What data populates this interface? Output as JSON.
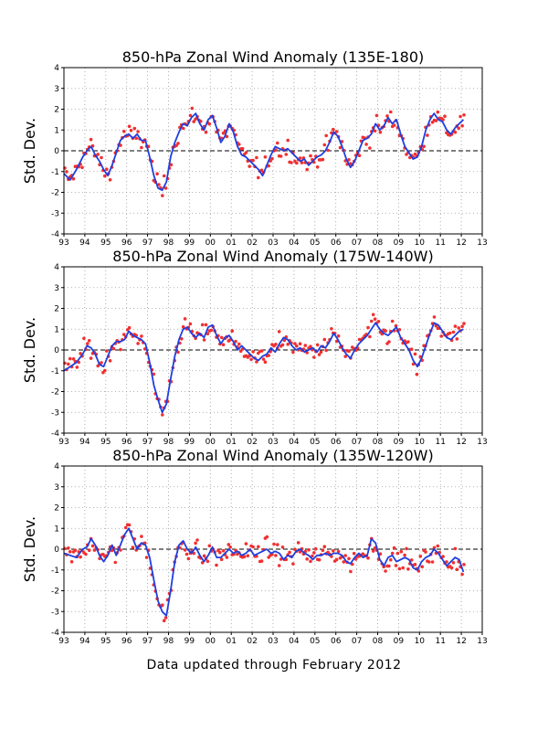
{
  "footer": "Data updated through February 2012",
  "colors": {
    "line": "#1f3fe0",
    "dots": "#f03030",
    "grid": "#9a9a9a",
    "zero": "#000000"
  },
  "chart_data": [
    {
      "type": "line",
      "title": "850-hPa Zonal Wind Anomaly (135E-180)",
      "ylabel": "Std. Dev.",
      "xlim": [
        1993,
        2013
      ],
      "ylim": [
        -4,
        4
      ],
      "x_ticks": [
        "93",
        "94",
        "95",
        "96",
        "97",
        "98",
        "99",
        "00",
        "01",
        "02",
        "03",
        "04",
        "05",
        "06",
        "07",
        "08",
        "09",
        "10",
        "11",
        "12",
        "13"
      ],
      "y_ticks": [
        "4",
        "3",
        "2",
        "1",
        "0",
        "-1",
        "-2",
        "-3",
        "-4"
      ],
      "grid": true,
      "zero_line": "dashed",
      "smooth_series_knots": [
        [
          1993.0,
          -1.1
        ],
        [
          1993.3,
          -1.4
        ],
        [
          1993.6,
          -0.9
        ],
        [
          1993.9,
          -0.3
        ],
        [
          1994.1,
          0.0
        ],
        [
          1994.3,
          0.2
        ],
        [
          1994.5,
          -0.2
        ],
        [
          1994.7,
          -0.5
        ],
        [
          1994.9,
          -0.9
        ],
        [
          1995.1,
          -1.2
        ],
        [
          1995.3,
          -0.7
        ],
        [
          1995.5,
          -0.1
        ],
        [
          1995.7,
          0.5
        ],
        [
          1995.9,
          0.7
        ],
        [
          1996.1,
          0.8
        ],
        [
          1996.3,
          0.6
        ],
        [
          1996.5,
          0.8
        ],
        [
          1996.7,
          0.5
        ],
        [
          1996.9,
          0.5
        ],
        [
          1997.1,
          -0.3
        ],
        [
          1997.3,
          -1.2
        ],
        [
          1997.5,
          -1.8
        ],
        [
          1997.7,
          -1.9
        ],
        [
          1997.9,
          -1.5
        ],
        [
          1998.1,
          -0.3
        ],
        [
          1998.3,
          0.4
        ],
        [
          1998.5,
          0.9
        ],
        [
          1998.7,
          1.3
        ],
        [
          1998.9,
          1.2
        ],
        [
          1999.1,
          1.6
        ],
        [
          1999.3,
          1.8
        ],
        [
          1999.5,
          1.3
        ],
        [
          1999.7,
          1.0
        ],
        [
          1999.9,
          1.5
        ],
        [
          2000.1,
          1.7
        ],
        [
          2000.3,
          1.1
        ],
        [
          2000.5,
          0.4
        ],
        [
          2000.7,
          0.7
        ],
        [
          2000.9,
          1.3
        ],
        [
          2001.1,
          0.9
        ],
        [
          2001.3,
          0.2
        ],
        [
          2001.5,
          -0.2
        ],
        [
          2001.7,
          -0.3
        ],
        [
          2001.9,
          -0.5
        ],
        [
          2002.1,
          -0.7
        ],
        [
          2002.3,
          -0.9
        ],
        [
          2002.5,
          -1.2
        ],
        [
          2002.7,
          -0.7
        ],
        [
          2002.9,
          -0.2
        ],
        [
          2003.1,
          0.2
        ],
        [
          2003.3,
          0.1
        ],
        [
          2003.5,
          0.0
        ],
        [
          2003.7,
          0.1
        ],
        [
          2003.9,
          -0.1
        ],
        [
          2004.1,
          -0.3
        ],
        [
          2004.3,
          -0.5
        ],
        [
          2004.5,
          -0.4
        ],
        [
          2004.7,
          -0.7
        ],
        [
          2004.9,
          -0.5
        ],
        [
          2005.1,
          -0.3
        ],
        [
          2005.3,
          -0.2
        ],
        [
          2005.5,
          0.0
        ],
        [
          2005.7,
          0.4
        ],
        [
          2005.9,
          0.9
        ],
        [
          2006.1,
          0.7
        ],
        [
          2006.3,
          0.2
        ],
        [
          2006.5,
          -0.4
        ],
        [
          2006.7,
          -0.8
        ],
        [
          2006.9,
          -0.5
        ],
        [
          2007.1,
          0.0
        ],
        [
          2007.3,
          0.5
        ],
        [
          2007.5,
          0.6
        ],
        [
          2007.7,
          0.8
        ],
        [
          2007.9,
          1.3
        ],
        [
          2008.1,
          1.0
        ],
        [
          2008.3,
          1.2
        ],
        [
          2008.5,
          1.6
        ],
        [
          2008.7,
          1.3
        ],
        [
          2008.9,
          1.5
        ],
        [
          2009.1,
          0.8
        ],
        [
          2009.3,
          0.2
        ],
        [
          2009.5,
          -0.1
        ],
        [
          2009.7,
          -0.4
        ],
        [
          2009.9,
          -0.3
        ],
        [
          2010.1,
          0.2
        ],
        [
          2010.3,
          1.0
        ],
        [
          2010.5,
          1.5
        ],
        [
          2010.7,
          1.8
        ],
        [
          2010.9,
          1.5
        ],
        [
          2011.1,
          1.4
        ],
        [
          2011.3,
          1.0
        ],
        [
          2011.5,
          0.8
        ],
        [
          2011.7,
          1.1
        ],
        [
          2011.9,
          1.3
        ],
        [
          2012.1,
          1.5
        ]
      ]
    },
    {
      "type": "line",
      "title": "850-hPa Zonal Wind Anomaly (175W-140W)",
      "ylabel": "Std. Dev.",
      "xlim": [
        1993,
        2013
      ],
      "ylim": [
        -4,
        4
      ],
      "x_ticks": [
        "93",
        "94",
        "95",
        "96",
        "97",
        "98",
        "99",
        "00",
        "01",
        "02",
        "03",
        "04",
        "05",
        "06",
        "07",
        "08",
        "09",
        "10",
        "11",
        "12",
        "13"
      ],
      "y_ticks": [
        "4",
        "3",
        "2",
        "1",
        "0",
        "-1",
        "-2",
        "-3",
        "-4"
      ],
      "grid": true,
      "zero_line": "dashed",
      "smooth_series_knots": [
        [
          1993.0,
          -1.0
        ],
        [
          1993.3,
          -0.8
        ],
        [
          1993.6,
          -0.6
        ],
        [
          1993.9,
          -0.2
        ],
        [
          1994.1,
          0.2
        ],
        [
          1994.3,
          0.1
        ],
        [
          1994.5,
          -0.2
        ],
        [
          1994.7,
          -0.7
        ],
        [
          1994.9,
          -0.8
        ],
        [
          1995.1,
          -0.3
        ],
        [
          1995.3,
          0.2
        ],
        [
          1995.5,
          0.4
        ],
        [
          1995.7,
          0.4
        ],
        [
          1995.9,
          0.5
        ],
        [
          1996.1,
          0.9
        ],
        [
          1996.3,
          0.7
        ],
        [
          1996.5,
          0.6
        ],
        [
          1996.7,
          0.5
        ],
        [
          1996.9,
          0.3
        ],
        [
          1997.1,
          -0.6
        ],
        [
          1997.3,
          -1.7
        ],
        [
          1997.5,
          -2.4
        ],
        [
          1997.7,
          -3.0
        ],
        [
          1997.9,
          -2.6
        ],
        [
          1998.1,
          -1.4
        ],
        [
          1998.3,
          -0.3
        ],
        [
          1998.5,
          0.5
        ],
        [
          1998.7,
          1.0
        ],
        [
          1998.9,
          1.1
        ],
        [
          1999.1,
          0.8
        ],
        [
          1999.3,
          0.6
        ],
        [
          1999.5,
          0.8
        ],
        [
          1999.7,
          0.6
        ],
        [
          1999.9,
          1.1
        ],
        [
          2000.1,
          1.2
        ],
        [
          2000.3,
          0.7
        ],
        [
          2000.5,
          0.3
        ],
        [
          2000.7,
          0.6
        ],
        [
          2000.9,
          0.7
        ],
        [
          2001.1,
          0.4
        ],
        [
          2001.3,
          0.0
        ],
        [
          2001.5,
          0.2
        ],
        [
          2001.7,
          0.0
        ],
        [
          2001.9,
          -0.2
        ],
        [
          2002.1,
          -0.4
        ],
        [
          2002.3,
          -0.5
        ],
        [
          2002.5,
          -0.3
        ],
        [
          2002.7,
          -0.2
        ],
        [
          2002.9,
          0.1
        ],
        [
          2003.1,
          -0.1
        ],
        [
          2003.3,
          0.3
        ],
        [
          2003.5,
          0.6
        ],
        [
          2003.7,
          0.5
        ],
        [
          2003.9,
          0.2
        ],
        [
          2004.1,
          0.0
        ],
        [
          2004.3,
          0.1
        ],
        [
          2004.5,
          -0.1
        ],
        [
          2004.7,
          0.0
        ],
        [
          2004.9,
          0.1
        ],
        [
          2005.1,
          -0.1
        ],
        [
          2005.3,
          0.2
        ],
        [
          2005.5,
          0.1
        ],
        [
          2005.7,
          0.4
        ],
        [
          2005.9,
          0.8
        ],
        [
          2006.1,
          0.5
        ],
        [
          2006.3,
          0.1
        ],
        [
          2006.5,
          -0.2
        ],
        [
          2006.7,
          -0.4
        ],
        [
          2006.9,
          0.0
        ],
        [
          2007.1,
          0.3
        ],
        [
          2007.3,
          0.5
        ],
        [
          2007.5,
          0.7
        ],
        [
          2007.7,
          1.0
        ],
        [
          2007.9,
          1.3
        ],
        [
          2008.1,
          1.0
        ],
        [
          2008.3,
          0.8
        ],
        [
          2008.5,
          0.7
        ],
        [
          2008.7,
          0.9
        ],
        [
          2008.9,
          1.1
        ],
        [
          2009.1,
          0.6
        ],
        [
          2009.3,
          0.3
        ],
        [
          2009.5,
          0.0
        ],
        [
          2009.7,
          -0.5
        ],
        [
          2009.9,
          -0.8
        ],
        [
          2010.1,
          -0.4
        ],
        [
          2010.3,
          0.2
        ],
        [
          2010.5,
          0.8
        ],
        [
          2010.7,
          1.3
        ],
        [
          2010.9,
          1.2
        ],
        [
          2011.1,
          0.9
        ],
        [
          2011.3,
          0.6
        ],
        [
          2011.5,
          0.5
        ],
        [
          2011.7,
          0.7
        ],
        [
          2011.9,
          0.9
        ],
        [
          2012.1,
          1.0
        ]
      ]
    },
    {
      "type": "line",
      "title": "850-hPa Zonal Wind Anomaly (135W-120W)",
      "ylabel": "Std. Dev.",
      "xlim": [
        1993,
        2013
      ],
      "ylim": [
        -4,
        4
      ],
      "x_ticks": [
        "93",
        "94",
        "95",
        "96",
        "97",
        "98",
        "99",
        "00",
        "01",
        "02",
        "03",
        "04",
        "05",
        "06",
        "07",
        "08",
        "09",
        "10",
        "11",
        "12",
        "13"
      ],
      "y_ticks": [
        "4",
        "3",
        "2",
        "1",
        "0",
        "-1",
        "-2",
        "-3",
        "-4"
      ],
      "grid": true,
      "zero_line": "dashed",
      "smooth_series_knots": [
        [
          1993.0,
          -0.2
        ],
        [
          1993.3,
          -0.3
        ],
        [
          1993.6,
          -0.4
        ],
        [
          1993.9,
          0.0
        ],
        [
          1994.1,
          0.1
        ],
        [
          1994.3,
          0.5
        ],
        [
          1994.5,
          0.2
        ],
        [
          1994.7,
          -0.3
        ],
        [
          1994.9,
          -0.6
        ],
        [
          1995.1,
          -0.3
        ],
        [
          1995.3,
          0.2
        ],
        [
          1995.5,
          -0.3
        ],
        [
          1995.7,
          0.2
        ],
        [
          1995.9,
          0.7
        ],
        [
          1996.1,
          1.0
        ],
        [
          1996.3,
          0.5
        ],
        [
          1996.5,
          0.0
        ],
        [
          1996.7,
          0.3
        ],
        [
          1996.9,
          0.2
        ],
        [
          1997.1,
          -0.4
        ],
        [
          1997.3,
          -1.5
        ],
        [
          1997.5,
          -2.5
        ],
        [
          1997.7,
          -3.0
        ],
        [
          1997.9,
          -3.2
        ],
        [
          1998.1,
          -2.0
        ],
        [
          1998.3,
          -0.6
        ],
        [
          1998.5,
          0.2
        ],
        [
          1998.7,
          0.4
        ],
        [
          1998.9,
          0.0
        ],
        [
          1999.1,
          -0.2
        ],
        [
          1999.3,
          0.1
        ],
        [
          1999.5,
          -0.3
        ],
        [
          1999.7,
          -0.6
        ],
        [
          1999.9,
          -0.3
        ],
        [
          2000.1,
          0.1
        ],
        [
          2000.3,
          -0.4
        ],
        [
          2000.5,
          -0.4
        ],
        [
          2000.7,
          -0.2
        ],
        [
          2000.9,
          0.0
        ],
        [
          2001.1,
          -0.2
        ],
        [
          2001.3,
          -0.1
        ],
        [
          2001.5,
          -0.3
        ],
        [
          2001.7,
          -0.2
        ],
        [
          2001.9,
          0.0
        ],
        [
          2002.1,
          -0.3
        ],
        [
          2002.3,
          -0.2
        ],
        [
          2002.5,
          -0.1
        ],
        [
          2002.7,
          0.0
        ],
        [
          2002.9,
          -0.2
        ],
        [
          2003.1,
          -0.1
        ],
        [
          2003.3,
          -0.2
        ],
        [
          2003.5,
          -0.5
        ],
        [
          2003.7,
          -0.3
        ],
        [
          2003.9,
          -0.4
        ],
        [
          2004.1,
          -0.1
        ],
        [
          2004.3,
          0.0
        ],
        [
          2004.5,
          -0.2
        ],
        [
          2004.7,
          -0.3
        ],
        [
          2004.9,
          -0.5
        ],
        [
          2005.1,
          -0.3
        ],
        [
          2005.3,
          -0.3
        ],
        [
          2005.5,
          -0.2
        ],
        [
          2005.7,
          -0.3
        ],
        [
          2005.9,
          -0.2
        ],
        [
          2006.1,
          -0.2
        ],
        [
          2006.3,
          -0.3
        ],
        [
          2006.5,
          -0.6
        ],
        [
          2006.7,
          -0.7
        ],
        [
          2006.9,
          -0.4
        ],
        [
          2007.1,
          -0.2
        ],
        [
          2007.3,
          -0.4
        ],
        [
          2007.5,
          -0.3
        ],
        [
          2007.7,
          0.5
        ],
        [
          2007.9,
          0.3
        ],
        [
          2008.1,
          -0.5
        ],
        [
          2008.3,
          -0.8
        ],
        [
          2008.5,
          -0.4
        ],
        [
          2008.7,
          -0.3
        ],
        [
          2008.9,
          -0.6
        ],
        [
          2009.1,
          -0.5
        ],
        [
          2009.3,
          -0.4
        ],
        [
          2009.5,
          -0.5
        ],
        [
          2009.7,
          -0.9
        ],
        [
          2009.9,
          -1.0
        ],
        [
          2010.1,
          -0.6
        ],
        [
          2010.3,
          -0.4
        ],
        [
          2010.5,
          -0.3
        ],
        [
          2010.7,
          0.0
        ],
        [
          2010.9,
          -0.2
        ],
        [
          2011.1,
          -0.5
        ],
        [
          2011.3,
          -0.8
        ],
        [
          2011.5,
          -0.6
        ],
        [
          2011.7,
          -0.4
        ],
        [
          2011.9,
          -0.5
        ],
        [
          2012.1,
          -1.1
        ]
      ]
    }
  ]
}
